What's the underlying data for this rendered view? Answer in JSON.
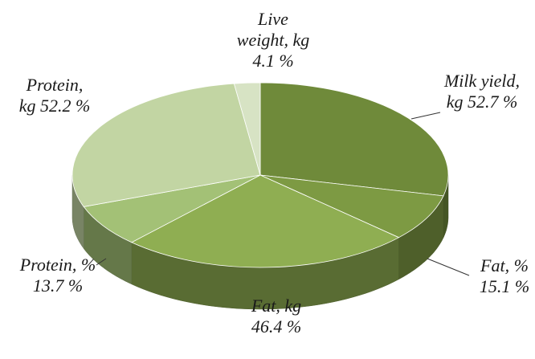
{
  "chart_data": {
    "type": "pie",
    "title": "",
    "slices": [
      {
        "name_lines": [
          "Milk yield,",
          "kg  52.7 %"
        ],
        "value": 52.7,
        "color": "#6f8a3a"
      },
      {
        "name_lines": [
          "Fat, %",
          "15.1 %"
        ],
        "value": 15.1,
        "color": "#7d9a43"
      },
      {
        "name_lines": [
          "Fat, kg",
          "46.4 %"
        ],
        "value": 46.4,
        "color": "#8fae52"
      },
      {
        "name_lines": [
          "Protein, %",
          "13.7 %"
        ],
        "value": 13.7,
        "color": "#a3c176"
      },
      {
        "name_lines": [
          "Protein,",
          "kg 52.2 %"
        ],
        "value": 52.2,
        "color": "#c2d5a3"
      },
      {
        "name_lines": [
          "Live",
          "weight, kg",
          "4.1 %"
        ],
        "value": 4.1,
        "color": "#d7e3c4"
      }
    ],
    "legend": "none",
    "style": "3d-pie"
  }
}
